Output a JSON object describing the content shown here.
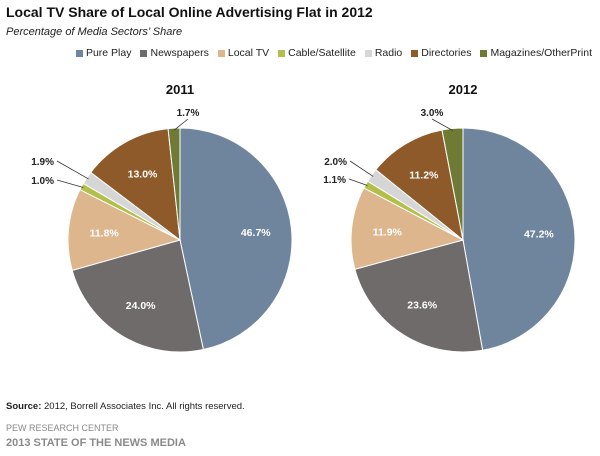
{
  "header": {
    "title": "Local TV Share of Local Online Advertising Flat in 2012",
    "subtitle": "Percentage of Media Sectors’ Share"
  },
  "footer": {
    "source_label": "Source:",
    "source_text": " 2012, Borrell Associates Inc. All rights reserved.",
    "org": "PEW RESEARCH CENTER",
    "report": "2013 STATE OF THE NEWS MEDIA"
  },
  "colors": {
    "Pure Play": "#6f859e",
    "Newspapers": "#6f6b6b",
    "Local TV": "#ddb68d",
    "Cable/Satellite": "#b3bf4a",
    "Radio": "#d6d6d6",
    "Directories": "#8f5a2a",
    "Magazines/OtherPrint": "#6f7a34"
  },
  "chart_data": [
    {
      "type": "pie",
      "title": "2011",
      "categories": [
        "Pure Play",
        "Newspapers",
        "Local TV",
        "Cable/Satellite",
        "Radio",
        "Directories",
        "Magazines/OtherPrint"
      ],
      "values": [
        46.7,
        24.0,
        11.8,
        1.0,
        1.9,
        13.0,
        1.7
      ],
      "labels": [
        "46.7%",
        "24.0%",
        "11.8%",
        "1.0%",
        "1.9%",
        "13.0%",
        "1.7%"
      ],
      "legend": "top-right"
    },
    {
      "type": "pie",
      "title": "2012",
      "categories": [
        "Pure Play",
        "Newspapers",
        "Local TV",
        "Cable/Satellite",
        "Radio",
        "Directories",
        "Magazines/OtherPrint"
      ],
      "values": [
        47.2,
        23.6,
        11.9,
        1.1,
        2.0,
        11.2,
        3.0
      ],
      "labels": [
        "47.2%",
        "23.6%",
        "11.9%",
        "1.1%",
        "2.0%",
        "11.2%",
        "3.0%"
      ],
      "legend": "top-right"
    }
  ],
  "legend_items": [
    "Pure Play",
    "Newspapers",
    "Local TV",
    "Cable/Satellite",
    "Radio",
    "Directories",
    "Magazines/OtherPrint"
  ]
}
